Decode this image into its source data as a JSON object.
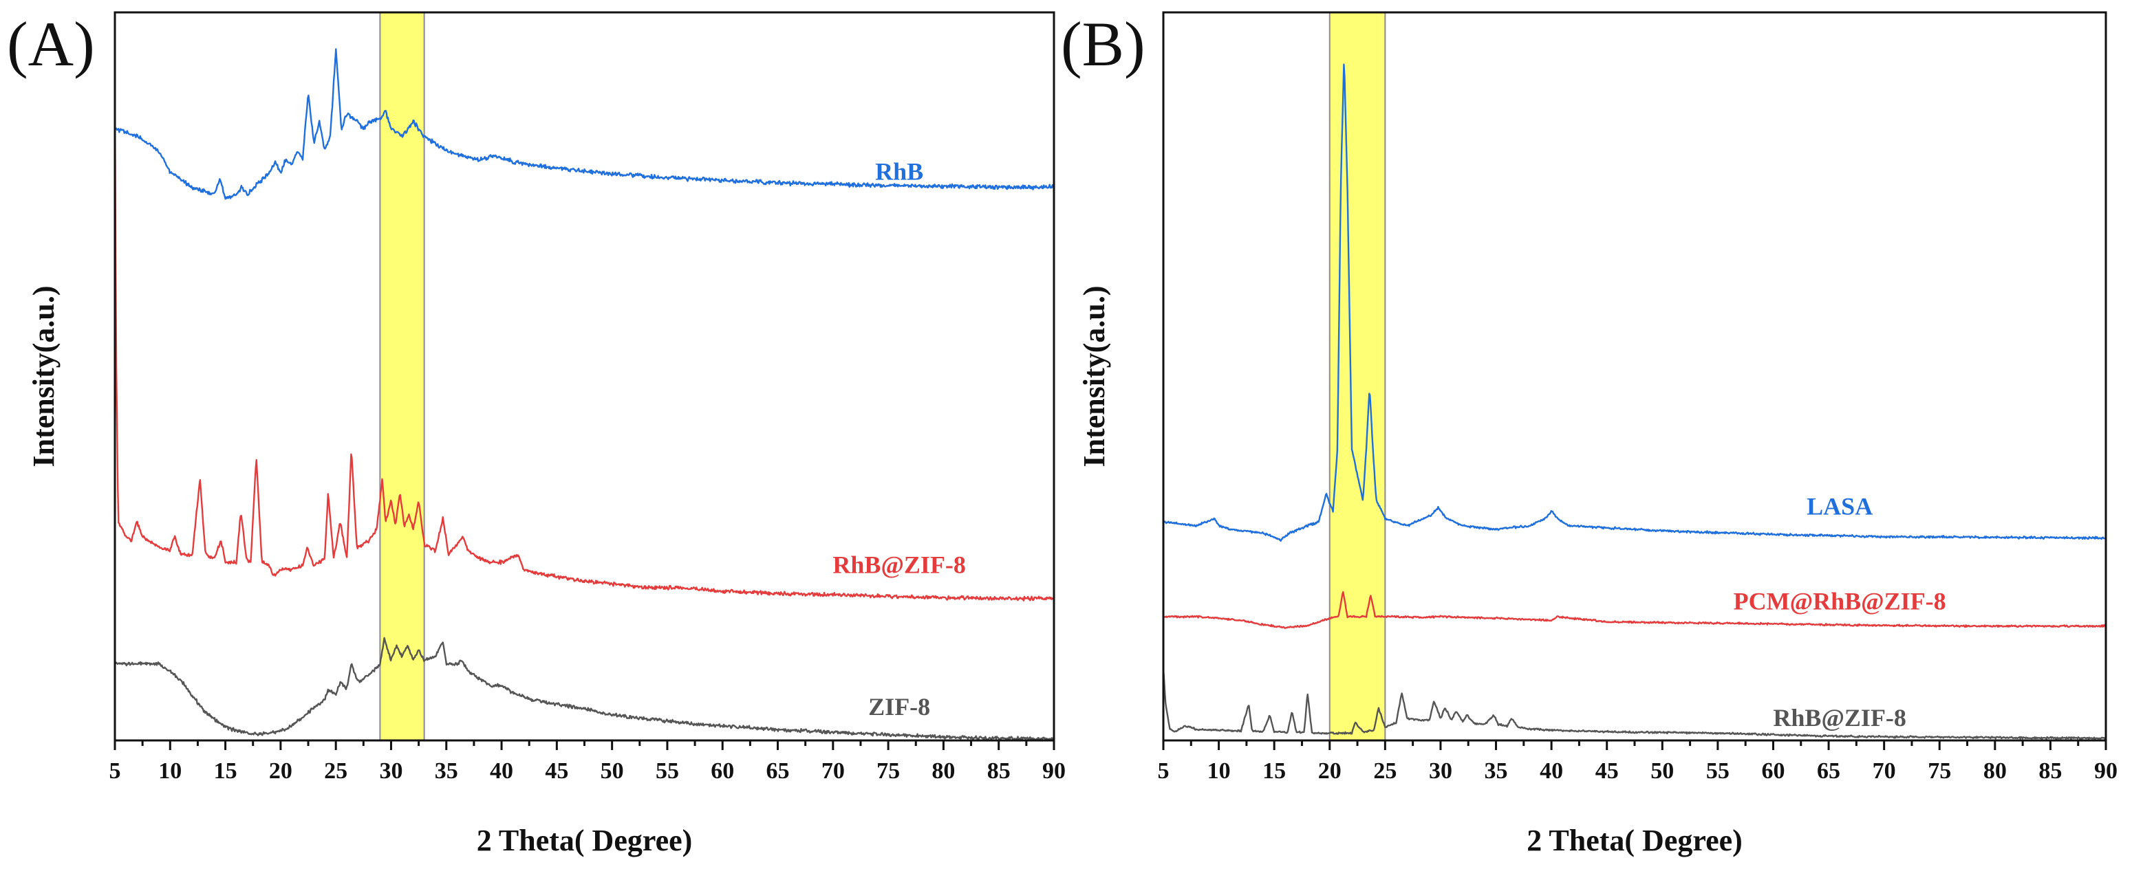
{
  "chart_data": [
    {
      "id": "A",
      "panel_label": "(A)",
      "type": "line",
      "xlabel": "2 Theta( Degree)",
      "ylabel": "Intensity(a.u.)",
      "xlim": [
        5,
        90
      ],
      "ylim": [
        0,
        100
      ],
      "x_ticks": [
        5,
        10,
        15,
        20,
        25,
        30,
        35,
        40,
        45,
        50,
        55,
        60,
        65,
        70,
        75,
        80,
        85,
        90
      ],
      "highlight_band": [
        29,
        33
      ],
      "series": [
        {
          "name": "RhB",
          "color": "#1f6fdd",
          "noise": 0.35,
          "label_at": [
            76,
            77
          ],
          "x": [
            5,
            7,
            9,
            10,
            11,
            12,
            13,
            14,
            14.5,
            15,
            16,
            16.5,
            17,
            18,
            19,
            19.5,
            20,
            20.5,
            21,
            21.5,
            22,
            22.5,
            23,
            23.5,
            24,
            24.5,
            25,
            25.5,
            26,
            26.5,
            27,
            27.5,
            28,
            29,
            29.5,
            30,
            31,
            32,
            32.5,
            33,
            34,
            35,
            36,
            37,
            38,
            39.5,
            41,
            43,
            45,
            50,
            55,
            60,
            65,
            70,
            75,
            80,
            85,
            90
          ],
          "values": [
            84,
            83,
            81,
            78,
            77,
            76,
            75.5,
            75,
            77,
            74.5,
            75,
            76,
            75,
            76.5,
            78,
            79.5,
            78,
            80,
            79,
            81,
            80,
            89,
            82,
            85,
            81,
            83,
            95,
            84,
            86,
            85.5,
            85,
            84,
            85,
            85.5,
            86.5,
            84,
            83,
            85,
            84,
            83,
            82,
            81,
            80.5,
            80,
            79.8,
            80.3,
            79.5,
            79,
            78.6,
            77.8,
            77.3,
            76.9,
            76.6,
            76.4,
            76.2,
            76.1,
            76,
            76
          ]
        },
        {
          "name": "RhB@ZIF-8",
          "color": "#e43c3c",
          "noise": 0.3,
          "label_at": [
            76,
            23
          ],
          "x": [
            5,
            5.1,
            5.3,
            6,
            6.5,
            7,
            7.5,
            9,
            10,
            10.4,
            11,
            12,
            12.7,
            13.2,
            14,
            14.6,
            15,
            16,
            16.4,
            16.9,
            17.3,
            17.8,
            18.3,
            19,
            19.4,
            20,
            21,
            22,
            22.4,
            23,
            24,
            24.3,
            24.8,
            25.4,
            26,
            26.4,
            26.9,
            27.5,
            28,
            28.7,
            29.2,
            29.5,
            30,
            30.4,
            30.8,
            31.2,
            31.6,
            32,
            32.5,
            33,
            34,
            34.7,
            35.2,
            36,
            36.5,
            37,
            38,
            39,
            40,
            41.5,
            42,
            43,
            45,
            47,
            50,
            53,
            56,
            60,
            65,
            70,
            75,
            80,
            85,
            90
          ],
          "values": [
            90,
            55,
            30,
            28,
            27.5,
            30,
            28,
            26.5,
            26,
            28,
            25.5,
            25.5,
            36,
            25.5,
            25,
            27.5,
            24.5,
            24.5,
            31.5,
            25,
            24.5,
            39,
            24.5,
            24,
            22.5,
            23.5,
            23.5,
            24,
            26.5,
            24,
            25,
            34,
            25,
            30,
            25,
            40,
            26.5,
            27,
            27.5,
            29,
            36,
            30,
            33,
            29.5,
            34,
            29.5,
            31,
            29,
            33,
            27,
            26,
            30.5,
            25.5,
            27,
            28,
            26,
            25,
            24.5,
            24.5,
            25.5,
            23.5,
            23,
            22.5,
            22,
            21.5,
            21,
            21,
            20.5,
            20.2,
            20,
            19.8,
            19.6,
            19.5,
            19.5
          ]
        },
        {
          "name": "ZIF-8",
          "color": "#555555",
          "noise": 0.28,
          "label_at": [
            76,
            3.5
          ],
          "x": [
            5,
            6,
            7,
            8,
            9,
            10,
            11,
            12,
            13,
            14,
            15,
            16,
            17,
            18,
            19,
            20,
            21,
            22,
            23,
            24,
            24.3,
            25,
            25.4,
            26,
            26.4,
            27,
            28,
            29,
            29.4,
            30,
            30.5,
            31,
            31.5,
            32,
            32.5,
            33,
            34,
            34.7,
            35,
            36,
            36.4,
            37,
            38,
            39,
            40,
            41,
            42,
            43,
            45,
            47,
            50,
            53,
            56,
            60,
            65,
            70,
            75,
            80,
            82,
            85,
            90
          ],
          "values": [
            10.5,
            10.5,
            10.6,
            10.5,
            10.5,
            9.5,
            8.2,
            6.2,
            4.2,
            2.9,
            1.9,
            1.3,
            1.0,
            0.9,
            1.0,
            1.3,
            2.0,
            3.2,
            4.5,
            5.5,
            7,
            6.2,
            8,
            7.2,
            10.5,
            8,
            9,
            10.5,
            14,
            11,
            13,
            11.5,
            13,
            11,
            12.5,
            11,
            11.5,
            13.5,
            10.5,
            10.5,
            11,
            9.5,
            8.5,
            7.5,
            7.5,
            6.5,
            6,
            5.5,
            5,
            4.5,
            3.5,
            3,
            2.5,
            2,
            1.5,
            1.1,
            0.8,
            0.5,
            0.4,
            0.3,
            0.2
          ]
        }
      ]
    },
    {
      "id": "B",
      "panel_label": "(B)",
      "type": "line",
      "xlabel": "2 Theta( Degree)",
      "ylabel": "Intensity(a.u.)",
      "xlim": [
        5,
        90
      ],
      "ylim": [
        0,
        100
      ],
      "x_ticks": [
        5,
        10,
        15,
        20,
        25,
        30,
        35,
        40,
        45,
        50,
        55,
        60,
        65,
        70,
        75,
        80,
        85,
        90
      ],
      "highlight_band": [
        20,
        25
      ],
      "series": [
        {
          "name": "LASA",
          "color": "#1f6fdd",
          "noise": 0.18,
          "label_at": [
            66,
            31
          ],
          "x": [
            5,
            8,
            9.6,
            10,
            11,
            14,
            15.6,
            16.4,
            18,
            19,
            19.7,
            20,
            20.3,
            20.7,
            21,
            21.3,
            21.6,
            22,
            23,
            23.3,
            23.6,
            23.9,
            24.2,
            25,
            26,
            27,
            28.5,
            29.2,
            29.8,
            30.5,
            32,
            35,
            38,
            39.5,
            40,
            40.6,
            41.5,
            45,
            50,
            60,
            70,
            80,
            90
          ],
          "values": [
            30,
            29.5,
            30.5,
            29.5,
            29,
            28.5,
            27.5,
            28.5,
            29.5,
            30,
            34,
            32.5,
            31.5,
            40,
            76,
            94,
            76,
            40,
            33,
            40,
            48.5,
            40,
            33,
            30.5,
            30,
            29.5,
            30.5,
            31,
            32,
            30.5,
            29.5,
            29,
            29.5,
            30.5,
            31.5,
            30.5,
            29.5,
            29.2,
            28.8,
            28.3,
            28,
            27.9,
            27.8
          ]
        },
        {
          "name": "PCM@RhB@ZIF-8",
          "color": "#e43c3c",
          "noise": 0.15,
          "label_at": [
            66,
            18
          ],
          "x": [
            5,
            8,
            10,
            12,
            14,
            16,
            18,
            19.5,
            20,
            20.8,
            21.2,
            21.6,
            22.5,
            23.3,
            23.7,
            24.1,
            25,
            26,
            28,
            30,
            35,
            40,
            40.5,
            45,
            50,
            60,
            70,
            80,
            90
          ],
          "values": [
            17,
            17,
            16.8,
            16.5,
            15.9,
            15.5,
            15.8,
            16.5,
            16.8,
            17,
            20.5,
            17,
            17,
            17,
            20,
            17,
            17,
            17,
            16.9,
            17,
            16.8,
            16.5,
            17,
            16.3,
            16.2,
            16,
            15.8,
            15.7,
            15.7
          ]
        },
        {
          "name": "RhB@ZIF-8",
          "color": "#555555",
          "noise": 0.15,
          "label_at": [
            66,
            2
          ],
          "x": [
            5,
            5.2,
            5.6,
            6,
            7,
            8,
            10,
            12,
            12.7,
            13,
            14,
            14.6,
            15,
            16.2,
            16.6,
            17,
            17.7,
            18,
            18.4,
            19,
            20,
            21,
            22,
            22.3,
            23,
            24,
            24.4,
            25,
            26,
            26.5,
            27,
            28,
            29,
            29.4,
            30,
            30.4,
            31,
            31.4,
            32,
            32.4,
            33,
            34,
            34.8,
            35.2,
            36,
            36.4,
            37,
            38,
            40,
            42,
            45,
            50,
            55,
            60,
            65,
            70,
            80,
            90
          ],
          "values": [
            10,
            5,
            1.5,
            1.2,
            2,
            1.5,
            1.4,
            1.3,
            5,
            1.3,
            1.2,
            3.5,
            1.2,
            1.1,
            4,
            1.1,
            1.1,
            6.5,
            1.1,
            1,
            1,
            1,
            1,
            2.5,
            1.2,
            1.4,
            4.5,
            1.8,
            2.5,
            6.5,
            3,
            2.8,
            2.8,
            5.5,
            3,
            4.5,
            2.8,
            4,
            2.6,
            3.5,
            2.4,
            2.2,
            3.5,
            2.2,
            2,
            3,
            1.8,
            1.6,
            1.4,
            1.3,
            1.2,
            1.1,
            1,
            0.8,
            0.6,
            0.5,
            0.4,
            0.3
          ]
        }
      ]
    }
  ]
}
